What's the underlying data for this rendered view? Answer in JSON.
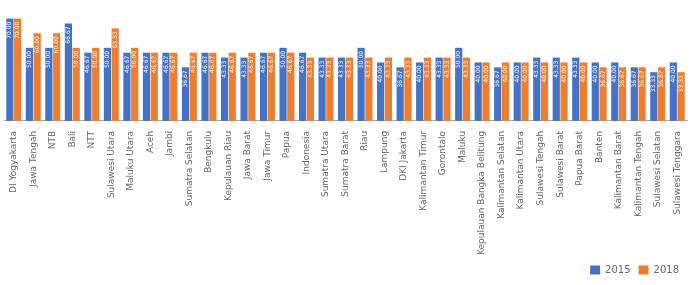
{
  "chart_data": {
    "type": "bar",
    "categories": [
      "DI Yogyakarta",
      "Jawa Tengah",
      "NTB",
      "Bali",
      "NTT",
      "Sulawesi Utara",
      "Maluku Utara",
      "Aceh",
      "Jambi",
      "Sumatra Selatan",
      "Bengkulu",
      "Kepulauan Riau",
      "Jawa Barat",
      "Jawa Timur",
      "Papua",
      "Indonesia",
      "Sumatra Utara",
      "Sumatra Barat",
      "Riau",
      "Lampung",
      "DKI Jakarta",
      "Kalimantan Timur",
      "Gorontalo",
      "Maluku",
      "Kepulauan Bangka Belitung",
      "Kalimantan Selatan",
      "Kalimantan Utara",
      "Sulawesi Tengah",
      "Sulawesi Barat",
      "Papua Barat",
      "Banten",
      "Kalimantan Barat",
      "Kalimantan Tengah",
      "Sulawesi Selatan",
      "Sulawesi Tenggara"
    ],
    "series": [
      {
        "name": "2015",
        "color": "#4472c4",
        "values": [
          70.0,
          50.0,
          50.0,
          66.67,
          46.67,
          50.0,
          46.67,
          46.67,
          46.67,
          36.67,
          46.67,
          43.33,
          43.33,
          46.67,
          50.0,
          46.67,
          43.33,
          43.33,
          50.0,
          40.0,
          36.67,
          40.0,
          43.33,
          50.0,
          40.0,
          36.67,
          40.0,
          43.33,
          43.33,
          43.33,
          40.0,
          40.0,
          36.67,
          33.33,
          40.0
        ],
        "value_labels": [
          "70.00",
          "50.00",
          "50.00",
          "66.67",
          "46.67",
          "50.00",
          "46.67",
          "46.67",
          "46.67",
          "36.67",
          "46.67",
          "43.33",
          "43.33",
          "46.67",
          "50.00",
          "46.67",
          "43.33",
          "43.33",
          "50.00",
          "40.00",
          "36.67",
          "40.00",
          "43.33",
          "50.00",
          "40.00",
          "36.67",
          "40.00",
          "43.33",
          "43.33",
          "43.33",
          "40.00",
          "40.00",
          "36.67",
          "33.33",
          "40.00"
        ]
      },
      {
        "name": "2018",
        "color": "#ed7d31",
        "values": [
          70.0,
          60.0,
          60.0,
          50.0,
          50.0,
          63.33,
          50.0,
          46.67,
          46.67,
          46.67,
          46.67,
          46.67,
          46.67,
          46.67,
          46.67,
          43.33,
          43.33,
          43.33,
          43.33,
          43.33,
          43.33,
          43.33,
          43.33,
          43.33,
          40.0,
          40.0,
          40.0,
          40.0,
          40.0,
          40.0,
          36.67,
          36.67,
          36.67,
          36.67,
          33.33
        ],
        "value_labels": [
          "70.00",
          "60.00",
          "60.00",
          "50.00",
          "50.00",
          "63.33",
          "50.00",
          "46.67",
          "46.67",
          "46.67",
          "46.67",
          "46.67",
          "46.67",
          "46.67",
          "46.67",
          "43.33",
          "43.33",
          "43.33",
          "43.33",
          "43.33",
          "43.33",
          "43.33",
          "43.33",
          "43.33",
          "40.00",
          "40.00",
          "40.00",
          "40.00",
          "40.00",
          "40.00",
          "36.67",
          "36.67",
          "36.67",
          "36.67",
          "33.33"
        ]
      }
    ],
    "ylim": [
      0,
      80
    ],
    "grid": false,
    "legend": "bottom",
    "data_labels": true,
    "tick_labels": "x"
  }
}
